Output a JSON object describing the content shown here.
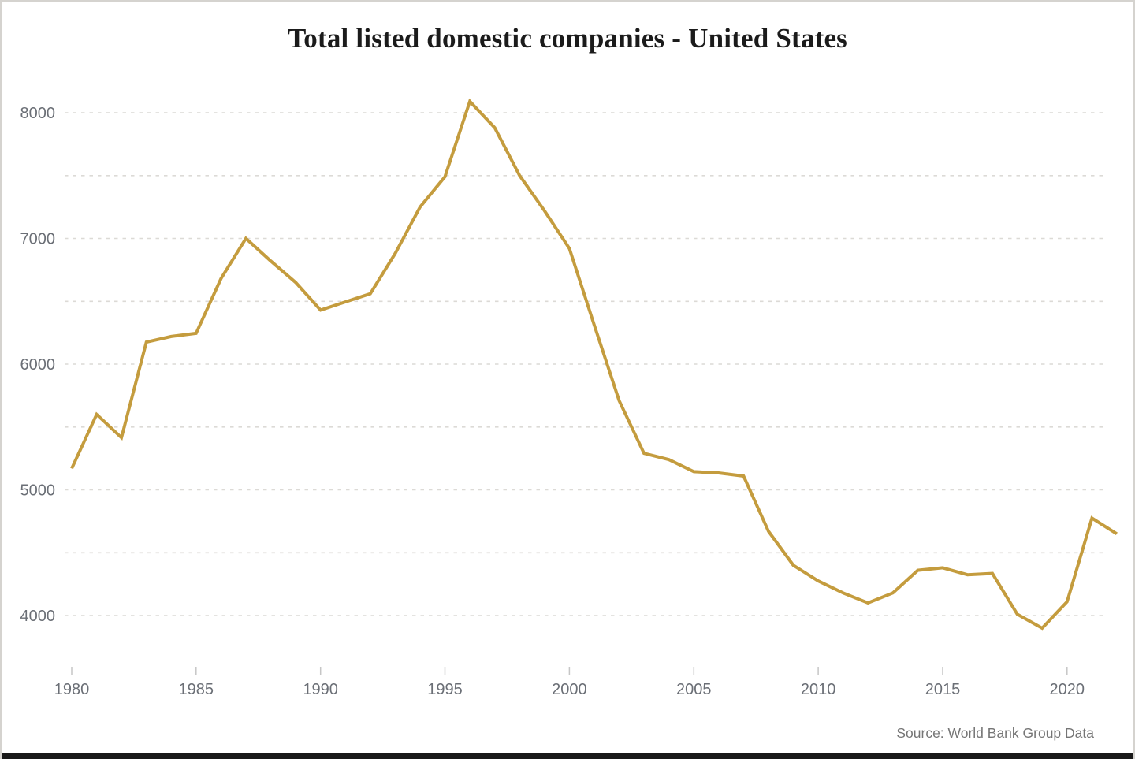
{
  "chart_data": {
    "type": "line",
    "title": "Total listed domestic companies - United States",
    "source": "Source: World Bank Group Data",
    "series_name": "Total listed domestic companies",
    "x": [
      1980,
      1981,
      1982,
      1983,
      1984,
      1985,
      1986,
      1987,
      1988,
      1989,
      1990,
      1991,
      1992,
      1993,
      1994,
      1995,
      1996,
      1997,
      1998,
      1999,
      2000,
      2001,
      2002,
      2003,
      2004,
      2005,
      2006,
      2007,
      2008,
      2009,
      2010,
      2011,
      2012,
      2013,
      2014,
      2015,
      2016,
      2017,
      2018,
      2019,
      2020,
      2021,
      2022
    ],
    "values": [
      5170,
      5600,
      5415,
      6175,
      6220,
      6245,
      6680,
      7000,
      6820,
      6650,
      6430,
      6495,
      6560,
      6880,
      7250,
      7490,
      8090,
      7880,
      7500,
      7220,
      6920,
      6310,
      5710,
      5290,
      5240,
      5145,
      5135,
      5110,
      4670,
      4400,
      4275,
      4180,
      4100,
      4180,
      4360,
      4380,
      4325,
      4335,
      4010,
      3900,
      4110,
      4775,
      4650
    ],
    "x_ticks": [
      1980,
      1985,
      1990,
      1995,
      2000,
      2005,
      2010,
      2015,
      2020
    ],
    "y_ticks_labeled": [
      8000,
      7000,
      6000,
      5000,
      4000
    ],
    "y_gridlines": [
      8000,
      7500,
      7000,
      6500,
      6000,
      5500,
      5000,
      4500,
      4000
    ],
    "ylim": [
      3800,
      8200
    ],
    "xlabel": "",
    "ylabel": "",
    "grid": "dotted horizontal",
    "legend": "none",
    "line_color": "#C49C3E",
    "grid_color": "#DCDAD6",
    "tick_color": "#C6C6C6",
    "label_color": "#6B6F76",
    "title_color": "#1B1B1B",
    "source_color": "#757575",
    "background": "#FFFFFF"
  }
}
